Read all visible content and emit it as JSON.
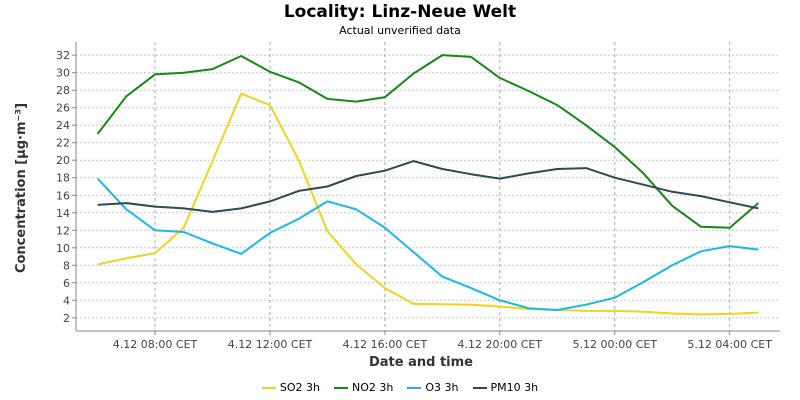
{
  "chart_data": {
    "type": "line",
    "title": "Locality: Linz-Neue Welt",
    "subtitle": "Actual unverified data",
    "xlabel": "Date and time",
    "ylabel": "Concentration [µg·m⁻³]",
    "ylim": [
      0.5,
      33.5
    ],
    "yticks": [
      2,
      4,
      6,
      8,
      10,
      12,
      14,
      16,
      18,
      20,
      22,
      24,
      26,
      28,
      30,
      32
    ],
    "x": [
      "2023-12-04 06:00",
      "2023-12-04 07:00",
      "2023-12-04 08:00",
      "2023-12-04 09:00",
      "2023-12-04 10:00",
      "2023-12-04 11:00",
      "2023-12-04 12:00",
      "2023-12-04 13:00",
      "2023-12-04 14:00",
      "2023-12-04 15:00",
      "2023-12-04 16:00",
      "2023-12-04 17:00",
      "2023-12-04 18:00",
      "2023-12-04 19:00",
      "2023-12-04 20:00",
      "2023-12-04 21:00",
      "2023-12-04 22:00",
      "2023-12-04 23:00",
      "2023-12-05 00:00",
      "2023-12-05 01:00",
      "2023-12-05 02:00",
      "2023-12-05 03:00",
      "2023-12-05 04:00",
      "2023-12-05 05:00"
    ],
    "xticks": [
      {
        "x": "2023-12-04 08:00",
        "label": "4.12 08:00 CET"
      },
      {
        "x": "2023-12-04 12:00",
        "label": "4.12 12:00 CET"
      },
      {
        "x": "2023-12-04 16:00",
        "label": "4.12 16:00 CET"
      },
      {
        "x": "2023-12-04 20:00",
        "label": "4.12 20:00 CET"
      },
      {
        "x": "2023-12-05 00:00",
        "label": "5.12 00:00 CET"
      },
      {
        "x": "2023-12-05 04:00",
        "label": "5.12 04:00 CET"
      }
    ],
    "grid": true,
    "legend_position": "bottom",
    "series": [
      {
        "name": "SO2 3h",
        "color": "#f2d21e",
        "values": [
          8.1,
          8.8,
          9.4,
          12.3,
          19.9,
          27.6,
          26.3,
          20.0,
          11.9,
          8.1,
          5.4,
          3.6,
          3.55,
          3.5,
          3.3,
          3.0,
          2.9,
          2.8,
          2.8,
          2.7,
          2.5,
          2.4,
          2.45,
          2.6
        ]
      },
      {
        "name": "NO2 3h",
        "color": "#138a13",
        "values": [
          23.0,
          27.3,
          29.8,
          30.0,
          30.4,
          31.9,
          30.1,
          28.9,
          27.0,
          26.7,
          27.2,
          29.9,
          32.0,
          31.8,
          29.4,
          27.9,
          26.3,
          24.0,
          21.5,
          18.5,
          14.8,
          12.4,
          12.3,
          15.1
        ]
      },
      {
        "name": "O3 3h",
        "color": "#1ab8e8",
        "values": [
          17.9,
          14.4,
          12.0,
          11.8,
          10.5,
          9.3,
          11.7,
          13.3,
          15.3,
          14.4,
          12.3,
          9.5,
          6.7,
          5.4,
          4.0,
          3.1,
          2.9,
          3.5,
          4.3,
          6.1,
          8.0,
          9.6,
          10.2,
          9.8
        ]
      },
      {
        "name": "PM10 3h",
        "color": "#2f4a50",
        "values": [
          14.9,
          15.1,
          14.7,
          14.5,
          14.1,
          14.5,
          15.3,
          16.5,
          17.0,
          18.2,
          18.8,
          19.9,
          19.0,
          18.4,
          17.9,
          18.5,
          19.0,
          19.1,
          18.0,
          17.2,
          16.4,
          15.9,
          15.2,
          14.5
        ]
      }
    ]
  }
}
